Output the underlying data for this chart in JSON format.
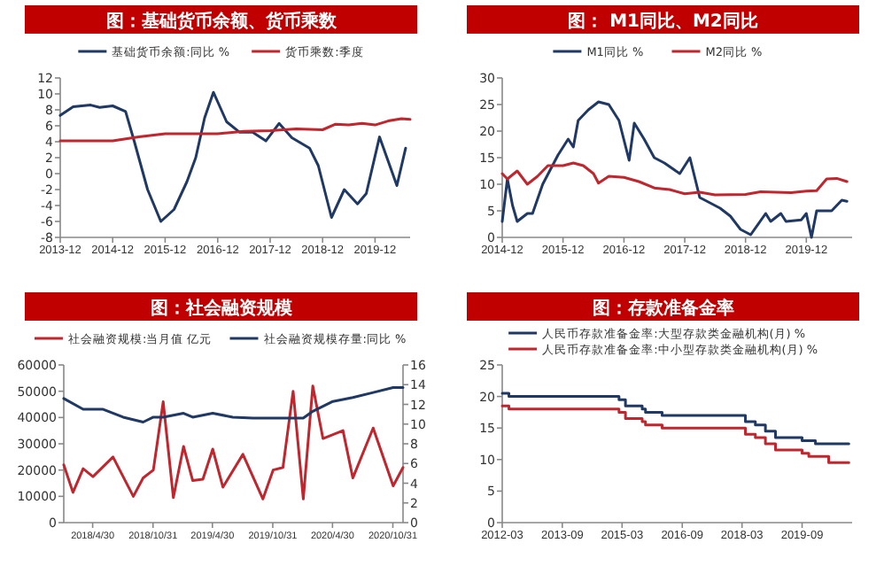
{
  "chart_data": [
    {
      "type": "line",
      "title": "图：基础货币余额、货币乘数",
      "legend": "top",
      "xlim": [
        "2013-12",
        "2020-08"
      ],
      "ylim": [
        -8,
        12
      ],
      "yticks": [
        -8,
        -6,
        -4,
        -2,
        0,
        2,
        4,
        6,
        8,
        10,
        12
      ],
      "xticks": [
        {
          "value": "2013-12",
          "label": "2013-12"
        },
        {
          "value": "2014-12",
          "label": "2014-12"
        },
        {
          "value": "2015-12",
          "label": "2015-12"
        },
        {
          "value": "2016-12",
          "label": "2016-12"
        },
        {
          "value": "2017-12",
          "label": "2017-12"
        },
        {
          "value": "2018-12",
          "label": "2018-12"
        },
        {
          "value": "2019-12",
          "label": "2019-12"
        }
      ],
      "series": [
        {
          "name": "基础货币余额:同比 %",
          "color": "#1f3864",
          "x": [
            "2013-12",
            "2014-03",
            "2014-07",
            "2014-09",
            "2014-12",
            "2015-03",
            "2015-05",
            "2015-08",
            "2015-11",
            "2016-02",
            "2016-05",
            "2016-07",
            "2016-09",
            "2016-11",
            "2016-12",
            "2017-02",
            "2017-05",
            "2017-08",
            "2017-11",
            "2018-02",
            "2018-05",
            "2018-09",
            "2018-11",
            "2019-02",
            "2019-05",
            "2019-08",
            "2019-10",
            "2020-01",
            "2020-05",
            "2020-07"
          ],
          "values": [
            7.3,
            8.4,
            8.6,
            8.3,
            8.5,
            7.8,
            4,
            -2,
            -6,
            -4.5,
            -1,
            2,
            7,
            10.2,
            9,
            6.5,
            5.2,
            5.2,
            4.1,
            6.3,
            4.5,
            3.2,
            1,
            -5.5,
            -2,
            -3.8,
            -2.5,
            4.6,
            -1.5,
            3.2
          ]
        },
        {
          "name": "货币乘数:季度",
          "color": "#c0262d",
          "x": [
            "2013-12",
            "2014-12",
            "2015-06",
            "2015-12",
            "2016-12",
            "2017-06",
            "2017-12",
            "2018-06",
            "2018-12",
            "2019-03",
            "2019-06",
            "2019-09",
            "2019-12",
            "2020-03",
            "2020-06",
            "2020-08"
          ],
          "values": [
            4.1,
            4.1,
            4.6,
            5.0,
            5.0,
            5.3,
            5.4,
            5.6,
            5.5,
            6.2,
            6.1,
            6.3,
            6.1,
            6.6,
            6.9,
            6.8
          ]
        }
      ]
    },
    {
      "type": "line",
      "title": "图： M1同比、M2同比",
      "legend": "top",
      "xlim": [
        "2014-12",
        "2020-09"
      ],
      "ylim": [
        0,
        30
      ],
      "yticks": [
        0,
        5,
        10,
        15,
        20,
        25,
        30
      ],
      "xticks": [
        {
          "value": "2014-12",
          "label": "2014-12"
        },
        {
          "value": "2015-12",
          "label": "2015-12"
        },
        {
          "value": "2016-12",
          "label": "2016-12"
        },
        {
          "value": "2017-12",
          "label": "2017-12"
        },
        {
          "value": "2018-12",
          "label": "2018-12"
        },
        {
          "value": "2019-12",
          "label": "2019-12"
        }
      ],
      "series": [
        {
          "name": "M1同比 %",
          "color": "#1f3864",
          "x": [
            "2014-12",
            "2015-01",
            "2015-02",
            "2015-03",
            "2015-05",
            "2015-06",
            "2015-08",
            "2015-11",
            "2016-01",
            "2016-02",
            "2016-03",
            "2016-05",
            "2016-07",
            "2016-09",
            "2016-11",
            "2017-01",
            "2017-02",
            "2017-04",
            "2017-06",
            "2017-08",
            "2017-11",
            "2018-01",
            "2018-03",
            "2018-04",
            "2018-07",
            "2018-09",
            "2018-11",
            "2019-01",
            "2019-04",
            "2019-05",
            "2019-07",
            "2019-08",
            "2019-11",
            "2019-12",
            "2020-01",
            "2020-02",
            "2020-05",
            "2020-07",
            "2020-08"
          ],
          "values": [
            3,
            11,
            6,
            3,
            4.5,
            4.5,
            10,
            15.5,
            18.5,
            17,
            22,
            24,
            25.5,
            25,
            22,
            14.5,
            21.5,
            18.5,
            15,
            14,
            12,
            15,
            7.5,
            7,
            5.5,
            4,
            1.5,
            0.5,
            4.5,
            3,
            4.5,
            3,
            3.3,
            4.5,
            0,
            5,
            5,
            7,
            6.8
          ]
        },
        {
          "name": "M2同比 %",
          "color": "#c0262d",
          "x": [
            "2014-12",
            "2015-01",
            "2015-03",
            "2015-05",
            "2015-07",
            "2015-09",
            "2015-12",
            "2016-02",
            "2016-04",
            "2016-06",
            "2016-07",
            "2016-09",
            "2016-12",
            "2017-03",
            "2017-06",
            "2017-09",
            "2017-12",
            "2018-03",
            "2018-06",
            "2018-12",
            "2019-03",
            "2019-06",
            "2019-09",
            "2019-12",
            "2020-02",
            "2020-04",
            "2020-06",
            "2020-08"
          ],
          "values": [
            12,
            11,
            12.5,
            10,
            11.5,
            13.5,
            13.5,
            14,
            13.5,
            12,
            10.2,
            11.5,
            11.3,
            10.5,
            9.3,
            9,
            8.2,
            8.5,
            8,
            8.1,
            8.6,
            8.5,
            8.4,
            8.7,
            8.8,
            11,
            11.1,
            10.5
          ]
        }
      ]
    },
    {
      "type": "line",
      "title": "图：社会融资规模",
      "legend": "top",
      "xlim": [
        "2018-02",
        "2020-12"
      ],
      "ylim": [
        0,
        60000
      ],
      "yticks": [
        0,
        10000,
        20000,
        30000,
        40000,
        50000,
        60000
      ],
      "y2lim": [
        0,
        16
      ],
      "y2ticks": [
        0,
        2,
        4,
        6,
        8,
        10,
        12,
        14,
        16
      ],
      "xticks": [
        {
          "value": "2018-04-30",
          "label": "2018/4/30"
        },
        {
          "value": "2018-10-31",
          "label": "2018/10/31"
        },
        {
          "value": "2019-04-30",
          "label": "2019/4/30"
        },
        {
          "value": "2019-10-31",
          "label": "2019/10/31"
        },
        {
          "value": "2020-04-30",
          "label": "2020/4/30"
        },
        {
          "value": "2020-10-31",
          "label": "2020/10/31"
        }
      ],
      "series": [
        {
          "name": "社会融资规模:当月值 亿元",
          "color": "#c0262d",
          "x": [
            "2018-02",
            "2018-03",
            "2018-04",
            "2018-05",
            "2018-07",
            "2018-09",
            "2018-10",
            "2018-11",
            "2018-12",
            "2019-01",
            "2019-02",
            "2019-03",
            "2019-04",
            "2019-05",
            "2019-06",
            "2019-08",
            "2019-10",
            "2019-11",
            "2019-12",
            "2020-01",
            "2020-02",
            "2020-03",
            "2020-04",
            "2020-06",
            "2020-07",
            "2020-09",
            "2020-11",
            "2020-12"
          ],
          "values": [
            22000,
            11500,
            20500,
            17500,
            25000,
            10000,
            17000,
            20000,
            46000,
            9500,
            29000,
            16000,
            16500,
            28000,
            13500,
            26000,
            9000,
            20000,
            21000,
            50000,
            9000,
            52000,
            32000,
            35000,
            17000,
            36000,
            14000,
            21000
          ]
        },
        {
          "name": "社会融资规模存量:同比 %",
          "color": "#1f3864",
          "axis": "y2",
          "x": [
            "2018-02",
            "2018-04",
            "2018-06",
            "2018-08",
            "2018-10",
            "2018-11",
            "2018-12",
            "2019-02",
            "2019-03",
            "2019-05",
            "2019-07",
            "2019-09",
            "2019-12",
            "2020-02",
            "2020-03",
            "2020-05",
            "2020-07",
            "2020-09",
            "2020-11",
            "2020-12"
          ],
          "values": [
            12.6,
            11.5,
            11.5,
            10.7,
            10.2,
            10.7,
            10.7,
            11.1,
            10.7,
            11.1,
            10.7,
            10.6,
            10.6,
            10.6,
            11.3,
            12.3,
            12.7,
            13.2,
            13.7,
            13.7
          ]
        }
      ]
    },
    {
      "type": "step",
      "title": "图：存款准备金率",
      "legend": "top",
      "xlim": [
        "2012-03",
        "2020-12"
      ],
      "ylim": [
        0,
        25
      ],
      "yticks": [
        0,
        5,
        10,
        15,
        20,
        25
      ],
      "xticks": [
        {
          "value": "2012-03",
          "label": "2012-03"
        },
        {
          "value": "2013-09",
          "label": "2013-09"
        },
        {
          "value": "2015-03",
          "label": "2015-03"
        },
        {
          "value": "2016-09",
          "label": "2016-09"
        },
        {
          "value": "2018-03",
          "label": "2018-03"
        },
        {
          "value": "2019-09",
          "label": "2019-09"
        }
      ],
      "series": [
        {
          "name": "人民币存款准备金率:大型存款类金融机构(月) %",
          "color": "#1f3864",
          "x": [
            "2012-03",
            "2012-05",
            "2015-02",
            "2015-04",
            "2015-09",
            "2015-10",
            "2016-03",
            "2018-04",
            "2018-07",
            "2018-10",
            "2019-01",
            "2019-09",
            "2020-01",
            "2020-11"
          ],
          "values": [
            20.5,
            20,
            19.5,
            18.5,
            18,
            17.5,
            17,
            16,
            15.5,
            14.5,
            13.5,
            13,
            12.5,
            12.5
          ]
        },
        {
          "name": "人民币存款准备金率:中小型存款类金融机构(月) %",
          "color": "#c0262d",
          "x": [
            "2012-03",
            "2012-05",
            "2015-02",
            "2015-04",
            "2015-09",
            "2015-10",
            "2016-03",
            "2018-04",
            "2018-07",
            "2018-10",
            "2019-01",
            "2019-09",
            "2019-11",
            "2020-05",
            "2020-11"
          ],
          "values": [
            18.5,
            18,
            17.5,
            16.5,
            16,
            15.5,
            15,
            14,
            13.5,
            12.5,
            11.5,
            11,
            10.5,
            9.5,
            9.5
          ]
        }
      ]
    }
  ]
}
